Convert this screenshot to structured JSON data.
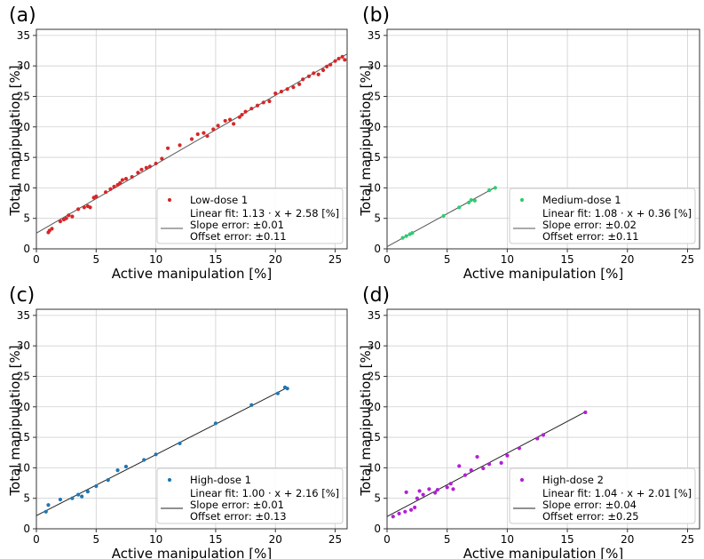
{
  "chart_data": [
    {
      "panel_label": "(a)",
      "type": "scatter",
      "xlabel": "Active manipulation [%]",
      "ylabel": "Total manipulation [%]",
      "xlim": [
        0,
        26
      ],
      "ylim": [
        0,
        36
      ],
      "xticks": [
        0,
        5,
        10,
        15,
        20,
        25
      ],
      "yticks": [
        0,
        5,
        10,
        15,
        20,
        25,
        30,
        35
      ],
      "grid": true,
      "legend_position": "bottom-right",
      "series": [
        {
          "name": "Low-dose 1",
          "color": "#d62728",
          "points": [
            [
              1.0,
              2.7
            ],
            [
              1.1,
              3.0
            ],
            [
              1.3,
              3.3
            ],
            [
              2.0,
              4.5
            ],
            [
              2.3,
              4.8
            ],
            [
              2.5,
              5.0
            ],
            [
              2.7,
              5.5
            ],
            [
              3.0,
              5.3
            ],
            [
              3.5,
              6.5
            ],
            [
              4.0,
              6.8
            ],
            [
              4.3,
              7.0
            ],
            [
              4.5,
              6.8
            ],
            [
              4.8,
              8.4
            ],
            [
              5.0,
              8.6
            ],
            [
              5.8,
              9.3
            ],
            [
              6.2,
              9.8
            ],
            [
              6.5,
              10.2
            ],
            [
              6.8,
              10.5
            ],
            [
              7.0,
              10.8
            ],
            [
              7.2,
              11.3
            ],
            [
              7.5,
              11.5
            ],
            [
              8.0,
              11.8
            ],
            [
              8.5,
              12.5
            ],
            [
              8.8,
              13.0
            ],
            [
              9.2,
              13.3
            ],
            [
              9.5,
              13.5
            ],
            [
              10.0,
              14.0
            ],
            [
              10.5,
              14.8
            ],
            [
              11.0,
              16.5
            ],
            [
              12.0,
              17.0
            ],
            [
              13.0,
              18.0
            ],
            [
              13.5,
              18.8
            ],
            [
              14.0,
              19.0
            ],
            [
              14.3,
              18.5
            ],
            [
              14.8,
              19.6
            ],
            [
              15.2,
              20.2
            ],
            [
              15.8,
              21.0
            ],
            [
              16.2,
              21.2
            ],
            [
              16.5,
              20.5
            ],
            [
              17.0,
              21.6
            ],
            [
              17.2,
              22.0
            ],
            [
              17.5,
              22.5
            ],
            [
              18.0,
              23.0
            ],
            [
              18.5,
              23.5
            ],
            [
              19.0,
              24.0
            ],
            [
              19.5,
              24.2
            ],
            [
              20.0,
              25.5
            ],
            [
              20.5,
              25.8
            ],
            [
              21.0,
              26.2
            ],
            [
              21.5,
              26.5
            ],
            [
              22.0,
              27.0
            ],
            [
              22.3,
              27.8
            ],
            [
              22.8,
              28.3
            ],
            [
              23.2,
              28.8
            ],
            [
              23.6,
              28.6
            ],
            [
              24.0,
              29.3
            ],
            [
              24.3,
              29.9
            ],
            [
              24.6,
              30.2
            ],
            [
              25.0,
              30.8
            ],
            [
              25.3,
              31.2
            ],
            [
              25.6,
              31.5
            ],
            [
              25.8,
              31.0
            ]
          ]
        }
      ],
      "fit": {
        "slope": 1.13,
        "intercept": 2.58,
        "x_range": [
          0,
          26
        ],
        "color": "#555555"
      },
      "legend": {
        "marker_label": "Low-dose 1",
        "fit_lines": [
          "Linear fit: 1.13 · x + 2.58 [%]",
          "Slope error: ±0.01",
          "Offset error: ±0.11"
        ]
      }
    },
    {
      "panel_label": "(b)",
      "type": "scatter",
      "xlabel": "Active manipulation [%]",
      "ylabel": "Total manipulation [%]",
      "xlim": [
        0,
        26
      ],
      "ylim": [
        0,
        36
      ],
      "xticks": [
        0,
        5,
        10,
        15,
        20,
        25
      ],
      "yticks": [
        0,
        5,
        10,
        15,
        20,
        25,
        30,
        35
      ],
      "grid": true,
      "legend_position": "bottom-right",
      "series": [
        {
          "name": "Medium-dose 1",
          "color": "#2ecc71",
          "points": [
            [
              1.3,
              1.8
            ],
            [
              1.6,
              2.1
            ],
            [
              1.9,
              2.4
            ],
            [
              2.1,
              2.6
            ],
            [
              4.7,
              5.4
            ],
            [
              6.0,
              6.8
            ],
            [
              6.8,
              7.6
            ],
            [
              7.0,
              8.0
            ],
            [
              7.3,
              7.9
            ],
            [
              8.5,
              9.6
            ],
            [
              9.0,
              10.0
            ]
          ]
        }
      ],
      "fit": {
        "slope": 1.08,
        "intercept": 0.36,
        "x_range": [
          0,
          9
        ],
        "color": "#555555"
      },
      "legend": {
        "marker_label": "Medium-dose 1",
        "fit_lines": [
          "Linear fit: 1.08 · x + 0.36 [%]",
          "Slope error: ±0.02",
          "Offset error: ±0.11"
        ]
      }
    },
    {
      "panel_label": "(c)",
      "type": "scatter",
      "xlabel": "Active manipulation [%]",
      "ylabel": "Total manipulation [%]",
      "xlim": [
        0,
        26
      ],
      "ylim": [
        0,
        36
      ],
      "xticks": [
        0,
        5,
        10,
        15,
        20,
        25
      ],
      "yticks": [
        0,
        5,
        10,
        15,
        20,
        25,
        30,
        35
      ],
      "grid": true,
      "legend_position": "bottom-right",
      "series": [
        {
          "name": "High-dose 1",
          "color": "#1f77b4",
          "points": [
            [
              0.8,
              2.8
            ],
            [
              1.0,
              3.9
            ],
            [
              2.0,
              4.8
            ],
            [
              3.0,
              5.0
            ],
            [
              3.5,
              5.6
            ],
            [
              3.8,
              5.3
            ],
            [
              4.3,
              6.1
            ],
            [
              5.0,
              7.0
            ],
            [
              6.0,
              8.0
            ],
            [
              6.8,
              9.6
            ],
            [
              7.5,
              10.2
            ],
            [
              9.0,
              11.3
            ],
            [
              10.0,
              12.2
            ],
            [
              12.0,
              14.0
            ],
            [
              15.0,
              17.3
            ],
            [
              18.0,
              20.3
            ],
            [
              20.2,
              22.2
            ],
            [
              20.8,
              23.2
            ],
            [
              21.0,
              23.0
            ]
          ]
        }
      ],
      "fit": {
        "slope": 1.0,
        "intercept": 2.16,
        "x_range": [
          0,
          21
        ],
        "color": "#222222"
      },
      "legend": {
        "marker_label": "High-dose 1",
        "fit_lines": [
          "Linear fit: 1.00 · x + 2.16 [%]",
          "Slope error: ±0.01",
          "Offset error: ±0.13"
        ]
      }
    },
    {
      "panel_label": "(d)",
      "type": "scatter",
      "xlabel": "Active manipulation [%]",
      "ylabel": "Total manipulation [%]",
      "xlim": [
        0,
        26
      ],
      "ylim": [
        0,
        36
      ],
      "xticks": [
        0,
        5,
        10,
        15,
        20,
        25
      ],
      "yticks": [
        0,
        5,
        10,
        15,
        20,
        25,
        30,
        35
      ],
      "grid": true,
      "legend_position": "bottom-right",
      "series": [
        {
          "name": "High-dose 2",
          "color": "#b31fd6",
          "points": [
            [
              0.5,
              2.0
            ],
            [
              1.0,
              2.5
            ],
            [
              1.5,
              2.8
            ],
            [
              1.6,
              6.0
            ],
            [
              2.0,
              3.1
            ],
            [
              2.3,
              3.5
            ],
            [
              2.5,
              5.0
            ],
            [
              2.7,
              6.2
            ],
            [
              3.0,
              5.6
            ],
            [
              3.5,
              6.5
            ],
            [
              4.0,
              5.9
            ],
            [
              4.2,
              6.4
            ],
            [
              5.0,
              6.8
            ],
            [
              5.3,
              7.4
            ],
            [
              5.5,
              6.5
            ],
            [
              6.0,
              10.3
            ],
            [
              6.5,
              8.8
            ],
            [
              7.0,
              9.6
            ],
            [
              7.5,
              11.8
            ],
            [
              8.0,
              9.9
            ],
            [
              8.5,
              10.6
            ],
            [
              9.5,
              10.8
            ],
            [
              10.0,
              12.0
            ],
            [
              11.0,
              13.2
            ],
            [
              12.5,
              14.8
            ],
            [
              13.0,
              15.4
            ],
            [
              16.5,
              19.1
            ]
          ]
        }
      ],
      "fit": {
        "slope": 1.04,
        "intercept": 2.01,
        "x_range": [
          0,
          16.5
        ],
        "color": "#222222"
      },
      "legend": {
        "marker_label": "High-dose 2",
        "fit_lines": [
          "Linear fit: 1.04 · x + 2.01 [%]",
          "Slope error: ±0.04",
          "Offset error: ±0.25"
        ]
      }
    }
  ]
}
